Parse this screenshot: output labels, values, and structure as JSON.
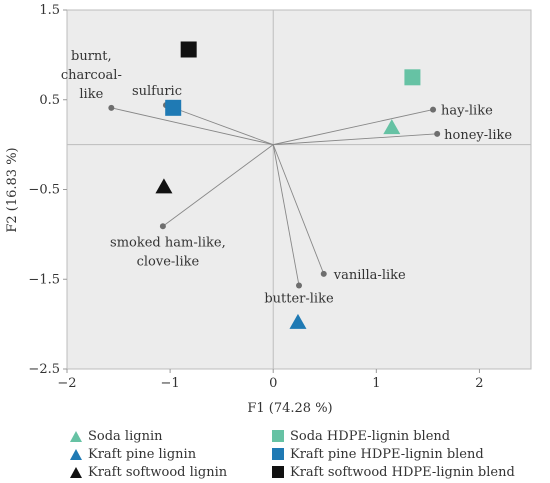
{
  "chart_data": {
    "type": "scatter",
    "xlabel": "F1 (74.28 %)",
    "ylabel": "F2 (16.83 %)",
    "xlim": [
      -2,
      2.5
    ],
    "ylim": [
      -2.5,
      1.5
    ],
    "x_ticks": [
      "−2",
      "−1",
      "0",
      "1",
      "2"
    ],
    "y_ticks": [
      "1.5",
      "0.5",
      "−0.5",
      "−1.5",
      "−2.5"
    ],
    "x_tick_values": [
      -2,
      -1,
      0,
      1,
      2
    ],
    "y_tick_values": [
      1.5,
      0.5,
      -0.5,
      -1.5,
      -2.5
    ],
    "grid": false,
    "legend_position": "bottom",
    "variables": [
      {
        "label": "burnt,",
        "label2": "charcoal-",
        "label3": "like",
        "x": -1.57,
        "y": 0.41
      },
      {
        "label": "sulfuric",
        "x": -1.04,
        "y": 0.44
      },
      {
        "label": "hay-like",
        "x": 1.55,
        "y": 0.39
      },
      {
        "label": "honey-like",
        "x": 1.59,
        "y": 0.12
      },
      {
        "label": "smoked ham-like,",
        "label2": "clove-like",
        "x": -1.07,
        "y": -0.91
      },
      {
        "label": "vanilla-like",
        "x": 0.49,
        "y": -1.44
      },
      {
        "label": "butter-like",
        "x": 0.25,
        "y": -1.57
      }
    ],
    "series": [
      {
        "name": "Soda lignin",
        "marker": "triangle",
        "color": "#66c2a4",
        "x": 1.15,
        "y": 0.2
      },
      {
        "name": "Kraft pine lignin",
        "marker": "triangle",
        "color": "#1f7ab4",
        "x": 0.24,
        "y": -1.97
      },
      {
        "name": "Kraft softwood lignin",
        "marker": "triangle",
        "color": "#111111",
        "x": -1.06,
        "y": -0.46
      },
      {
        "name": "Soda HDPE-lignin blend",
        "marker": "square",
        "color": "#66c2a4",
        "x": 1.35,
        "y": 0.75
      },
      {
        "name": "Kraft pine HDPE-lignin blend",
        "marker": "square",
        "color": "#1f7ab4",
        "x": -0.97,
        "y": 0.41
      },
      {
        "name": "Kraft softwood HDPE-lignin blend",
        "marker": "square",
        "color": "#111111",
        "x": -0.82,
        "y": 1.06
      }
    ]
  }
}
